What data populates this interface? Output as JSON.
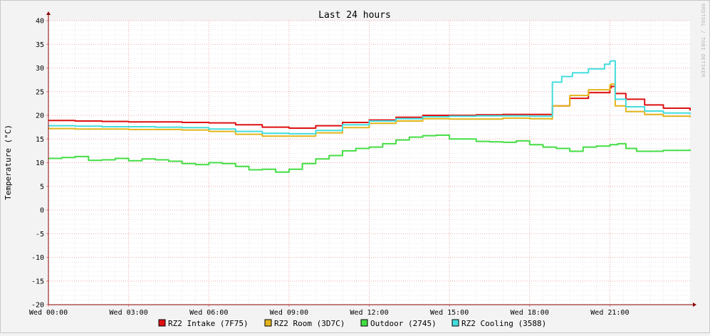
{
  "chart_data": {
    "type": "line",
    "title": "Last 24 hours",
    "ylabel": "Temperature (°C)",
    "watermark": "RRDTOOL / TOBI OETIKER",
    "ylim": [
      -20,
      40
    ],
    "yticks": [
      -20,
      -15,
      -10,
      -5,
      0,
      5,
      10,
      15,
      20,
      25,
      30,
      35,
      40
    ],
    "xlim": [
      0,
      24
    ],
    "xticks": [
      {
        "x": 0,
        "label": "Wed 00:00"
      },
      {
        "x": 3,
        "label": "Wed 03:00"
      },
      {
        "x": 6,
        "label": "Wed 06:00"
      },
      {
        "x": 9,
        "label": "Wed 09:00"
      },
      {
        "x": 12,
        "label": "Wed 12:00"
      },
      {
        "x": 15,
        "label": "Wed 15:00"
      },
      {
        "x": 18,
        "label": "Wed 18:00"
      },
      {
        "x": 21,
        "label": "Wed 21:00"
      }
    ],
    "grid": true,
    "legend": "bottom",
    "series": [
      {
        "name": "RZ2 Intake (7F75)",
        "color": "#dd1111",
        "points": [
          [
            0,
            18.9
          ],
          [
            1,
            18.8
          ],
          [
            2,
            18.7
          ],
          [
            3,
            18.6
          ],
          [
            4,
            18.6
          ],
          [
            5,
            18.5
          ],
          [
            6,
            18.4
          ],
          [
            7,
            18.0
          ],
          [
            8,
            17.5
          ],
          [
            9,
            17.3
          ],
          [
            10,
            17.8
          ],
          [
            11,
            18.5
          ],
          [
            12,
            19.0
          ],
          [
            13,
            19.6
          ],
          [
            14,
            20.0
          ],
          [
            15,
            20.0
          ],
          [
            16,
            20.1
          ],
          [
            17,
            20.2
          ],
          [
            18,
            20.2
          ],
          [
            18.8,
            20.2
          ],
          [
            18.85,
            22.0
          ],
          [
            19.5,
            23.6
          ],
          [
            20.2,
            24.8
          ],
          [
            21,
            25.8
          ],
          [
            21.05,
            26.1
          ],
          [
            21.2,
            24.6
          ],
          [
            21.6,
            23.4
          ],
          [
            22.3,
            22.2
          ],
          [
            23,
            21.5
          ],
          [
            24,
            21.0
          ]
        ]
      },
      {
        "name": "RZ2 Room (3D7C)",
        "color": "#e3b51b",
        "points": [
          [
            0,
            17.2
          ],
          [
            1,
            17.1
          ],
          [
            2,
            17.1
          ],
          [
            3,
            17.0
          ],
          [
            4,
            17.0
          ],
          [
            5,
            16.9
          ],
          [
            6,
            16.6
          ],
          [
            7,
            16.0
          ],
          [
            8,
            15.6
          ],
          [
            9,
            15.6
          ],
          [
            10,
            16.3
          ],
          [
            11,
            17.4
          ],
          [
            12,
            18.3
          ],
          [
            13,
            18.8
          ],
          [
            14,
            19.3
          ],
          [
            15,
            19.2
          ],
          [
            16,
            19.2
          ],
          [
            17,
            19.4
          ],
          [
            18,
            19.3
          ],
          [
            18.8,
            19.2
          ],
          [
            18.85,
            22.0
          ],
          [
            19.5,
            24.2
          ],
          [
            20.2,
            25.4
          ],
          [
            21,
            26.4
          ],
          [
            21.05,
            26.6
          ],
          [
            21.2,
            22.0
          ],
          [
            21.6,
            20.8
          ],
          [
            22.3,
            20.2
          ],
          [
            23,
            19.8
          ],
          [
            24,
            19.6
          ]
        ]
      },
      {
        "name": "Outdoor (2745)",
        "color": "#44dd44",
        "points": [
          [
            0,
            10.9
          ],
          [
            0.5,
            11.1
          ],
          [
            1,
            11.3
          ],
          [
            1.5,
            10.5
          ],
          [
            2,
            10.6
          ],
          [
            2.5,
            10.9
          ],
          [
            3,
            10.4
          ],
          [
            3.5,
            10.8
          ],
          [
            4,
            10.6
          ],
          [
            4.5,
            10.3
          ],
          [
            5,
            9.8
          ],
          [
            5.5,
            9.6
          ],
          [
            6,
            10.0
          ],
          [
            6.5,
            9.8
          ],
          [
            7,
            9.2
          ],
          [
            7.5,
            8.5
          ],
          [
            8,
            8.6
          ],
          [
            8.5,
            8.0
          ],
          [
            9,
            8.6
          ],
          [
            9.5,
            9.8
          ],
          [
            10,
            10.8
          ],
          [
            10.5,
            11.5
          ],
          [
            11,
            12.5
          ],
          [
            11.5,
            13.0
          ],
          [
            12,
            13.3
          ],
          [
            12.5,
            14.0
          ],
          [
            13,
            14.8
          ],
          [
            13.5,
            15.4
          ],
          [
            14,
            15.7
          ],
          [
            14.5,
            15.8
          ],
          [
            15,
            15.0
          ],
          [
            15.5,
            15.0
          ],
          [
            16,
            14.5
          ],
          [
            16.5,
            14.4
          ],
          [
            17,
            14.3
          ],
          [
            17.5,
            14.6
          ],
          [
            18,
            13.8
          ],
          [
            18.5,
            13.3
          ],
          [
            19,
            13.0
          ],
          [
            19.5,
            12.4
          ],
          [
            20,
            13.3
          ],
          [
            20.5,
            13.5
          ],
          [
            21,
            13.8
          ],
          [
            21.3,
            14.0
          ],
          [
            21.6,
            13.0
          ],
          [
            22,
            12.4
          ],
          [
            23,
            12.6
          ],
          [
            24,
            12.8
          ]
        ]
      },
      {
        "name": "RZ2 Cooling (3588)",
        "color": "#44dddd",
        "points": [
          [
            0,
            17.8
          ],
          [
            1,
            17.7
          ],
          [
            2,
            17.6
          ],
          [
            3,
            17.6
          ],
          [
            4,
            17.5
          ],
          [
            5,
            17.4
          ],
          [
            6,
            17.1
          ],
          [
            7,
            16.6
          ],
          [
            8,
            16.2
          ],
          [
            9,
            16.1
          ],
          [
            10,
            16.8
          ],
          [
            11,
            18.0
          ],
          [
            12,
            18.8
          ],
          [
            13,
            19.3
          ],
          [
            14,
            19.7
          ],
          [
            15,
            19.8
          ],
          [
            16,
            19.9
          ],
          [
            17,
            19.9
          ],
          [
            18,
            19.8
          ],
          [
            18.8,
            19.8
          ],
          [
            18.85,
            27.0
          ],
          [
            19.2,
            28.2
          ],
          [
            19.6,
            29.0
          ],
          [
            20.2,
            29.8
          ],
          [
            20.8,
            30.8
          ],
          [
            21,
            31.4
          ],
          [
            21.05,
            31.5
          ],
          [
            21.2,
            23.4
          ],
          [
            21.6,
            21.8
          ],
          [
            22.3,
            20.9
          ],
          [
            23,
            20.5
          ],
          [
            24,
            20.2
          ]
        ]
      }
    ]
  }
}
